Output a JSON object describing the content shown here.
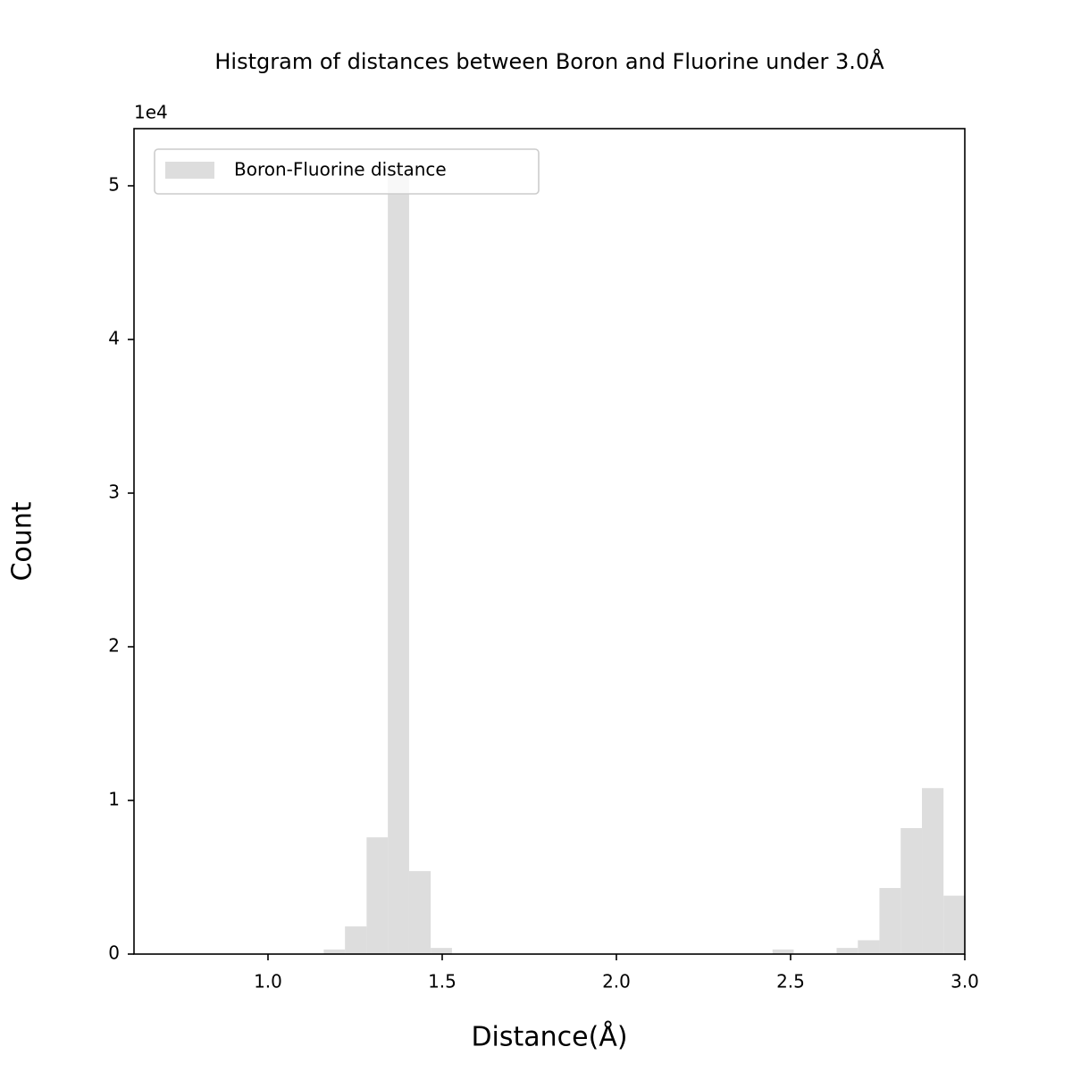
{
  "chart_data": {
    "type": "histogram",
    "title": "Histgram of distances between Boron and Fluorine under 3.0Å",
    "x_label": "Distance(Å)",
    "y_label": "Count",
    "y_offset_label": "1e4",
    "bins": [
      1.16,
      1.221,
      1.283,
      1.344,
      1.405,
      1.467,
      1.528,
      1.589,
      1.651,
      1.712,
      1.773,
      1.835,
      1.896,
      1.957,
      2.019,
      2.08,
      2.141,
      2.203,
      2.264,
      2.325,
      2.387,
      2.448,
      2.509,
      2.571,
      2.632,
      2.693,
      2.755,
      2.816,
      2.877,
      2.939,
      3.0
    ],
    "series": [
      {
        "name": "Boron-Fluorine distance",
        "color": "#dddddd",
        "values": [
          300,
          1800,
          7600,
          51000,
          5400,
          400,
          0,
          0,
          0,
          0,
          0,
          0,
          0,
          0,
          0,
          0,
          0,
          0,
          0,
          0,
          0,
          300,
          0,
          0,
          400,
          900,
          4300,
          8200,
          10800,
          3800
        ]
      }
    ],
    "xlim": [
      0.6154,
      3.0
    ],
    "xticks": [
      {
        "value": 1.0,
        "label": "1.0"
      },
      1.5,
      {
        "value": 2.0,
        "label": "2.0"
      },
      2.5,
      {
        "value": 3.0,
        "label": "3.0"
      }
    ],
    "ylim": [
      0,
      53720
    ],
    "yticks": [
      0,
      {
        "value": 10000,
        "label": "1"
      },
      {
        "value": 20000,
        "label": "2"
      },
      {
        "value": 30000,
        "label": "3"
      },
      {
        "value": 40000,
        "label": "4"
      },
      {
        "value": 50000,
        "label": "5"
      }
    ],
    "legend": "upper left"
  }
}
